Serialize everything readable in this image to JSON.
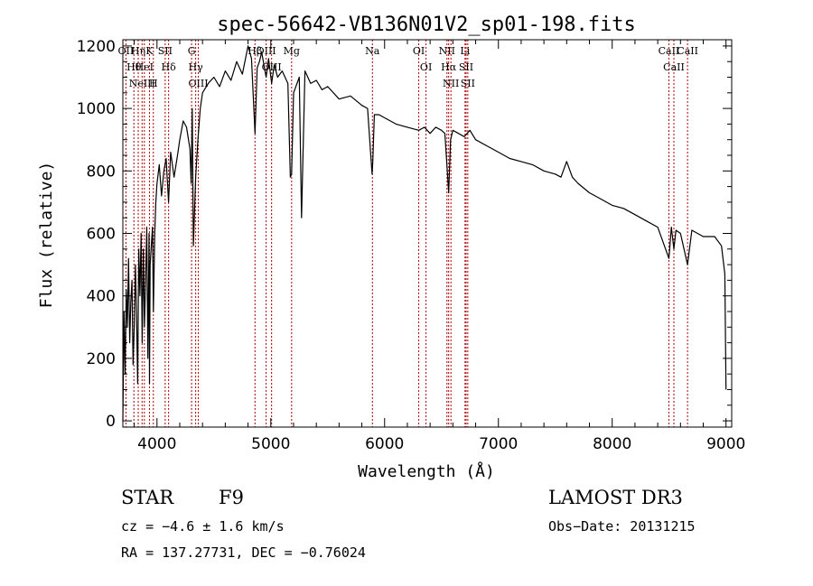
{
  "chart_data": {
    "type": "line",
    "title": "spec-56642-VB136N01V2_sp01-198.fits",
    "xlabel": "Wavelength (Å)",
    "ylabel": "Flux (relative)",
    "xlim": [
      3700,
      9050
    ],
    "ylim": [
      -20,
      1220
    ],
    "xticks": [
      4000,
      5000,
      6000,
      7000,
      8000,
      9000
    ],
    "yticks": [
      0,
      200,
      400,
      600,
      800,
      1000,
      1200
    ],
    "grid": false,
    "series": [
      {
        "x": [
          3700,
          3710,
          3720,
          3730,
          3740,
          3750,
          3760,
          3770,
          3780,
          3790,
          3800,
          3810,
          3820,
          3830,
          3840,
          3850,
          3860,
          3870,
          3880,
          3890,
          3900,
          3910,
          3920,
          3930,
          3934,
          3940,
          3950,
          3960,
          3968,
          3980,
          3990,
          4000,
          4020,
          4040,
          4060,
          4080,
          4102,
          4120,
          4150,
          4180,
          4200,
          4230,
          4260,
          4290,
          4300,
          4310,
          4320,
          4340,
          4360,
          4380,
          4400,
          4450,
          4500,
          4550,
          4600,
          4650,
          4700,
          4750,
          4800,
          4830,
          4861,
          4880,
          4900,
          4920,
          4959,
          4980,
          5007,
          5030,
          5060,
          5100,
          5150,
          5172,
          5183,
          5200,
          5250,
          5270,
          5300,
          5350,
          5400,
          5450,
          5500,
          5600,
          5700,
          5800,
          5850,
          5890,
          5896,
          5910,
          5950,
          6000,
          6100,
          6200,
          6300,
          6350,
          6400,
          6450,
          6500,
          6530,
          6563,
          6580,
          6600,
          6650,
          6700,
          6750,
          6800,
          6900,
          7000,
          7100,
          7200,
          7300,
          7400,
          7500,
          7550,
          7600,
          7650,
          7700,
          7800,
          7900,
          8000,
          8100,
          8200,
          8300,
          8400,
          8498,
          8520,
          8542,
          8560,
          8600,
          8662,
          8700,
          8800,
          8900,
          8960,
          8990,
          9000
        ],
        "y": [
          0,
          350,
          150,
          420,
          300,
          520,
          250,
          380,
          450,
          180,
          300,
          500,
          350,
          120,
          550,
          400,
          600,
          250,
          550,
          300,
          450,
          620,
          200,
          600,
          120,
          500,
          560,
          620,
          350,
          600,
          700,
          760,
          820,
          720,
          800,
          840,
          700,
          860,
          780,
          850,
          900,
          960,
          940,
          870,
          760,
          1000,
          560,
          780,
          900,
          1000,
          1050,
          1080,
          1100,
          1070,
          1120,
          1090,
          1150,
          1110,
          1200,
          1160,
          920,
          1130,
          1150,
          1180,
          1100,
          1160,
          1080,
          1140,
          1100,
          1120,
          1080,
          780,
          790,
          1050,
          1100,
          650,
          1120,
          1080,
          1090,
          1060,
          1070,
          1030,
          1040,
          1010,
          1000,
          790,
          830,
          980,
          980,
          970,
          950,
          940,
          930,
          940,
          920,
          940,
          930,
          920,
          730,
          900,
          930,
          920,
          910,
          930,
          900,
          880,
          860,
          840,
          830,
          820,
          800,
          790,
          780,
          830,
          780,
          760,
          730,
          710,
          690,
          680,
          660,
          640,
          620,
          520,
          620,
          550,
          610,
          600,
          500,
          610,
          590,
          590,
          560,
          470,
          100
        ]
      }
    ]
  },
  "line_marks": [
    {
      "x": 3727,
      "labels": [
        "OII"
      ]
    },
    {
      "x": 3797,
      "labels": [
        "Hθ"
      ]
    },
    {
      "x": 3835,
      "labels": [
        "Hη"
      ]
    },
    {
      "x": 3869,
      "labels": [
        "NeIII"
      ]
    },
    {
      "x": 3889,
      "labels": [
        "HeI"
      ]
    },
    {
      "x": 3934,
      "labels": [
        "K"
      ]
    },
    {
      "x": 3968,
      "labels": [
        "H"
      ]
    },
    {
      "x": 4072,
      "labels": [
        "SII"
      ]
    },
    {
      "x": 4102,
      "labels": [
        "Hδ"
      ]
    },
    {
      "x": 4304,
      "labels": [
        "G"
      ]
    },
    {
      "x": 4340,
      "labels": [
        "Hγ"
      ]
    },
    {
      "x": 4363,
      "labels": [
        "OIII"
      ]
    },
    {
      "x": 4861,
      "labels": [
        "Hβ"
      ]
    },
    {
      "x": 4959,
      "labels": [
        "OIII"
      ]
    },
    {
      "x": 5007,
      "labels": [
        "OIII"
      ]
    },
    {
      "x": 5183,
      "labels": [
        "Mg"
      ]
    },
    {
      "x": 5893,
      "labels": [
        "Na"
      ]
    },
    {
      "x": 6300,
      "labels": [
        "OI"
      ]
    },
    {
      "x": 6364,
      "labels": [
        "OI"
      ]
    },
    {
      "x": 6548,
      "labels": [
        "NII"
      ]
    },
    {
      "x": 6563,
      "labels": [
        "Hα"
      ]
    },
    {
      "x": 6583,
      "labels": [
        "NII"
      ]
    },
    {
      "x": 6707,
      "labels": [
        "Li"
      ]
    },
    {
      "x": 6716,
      "labels": [
        "SII"
      ]
    },
    {
      "x": 6731,
      "labels": [
        "SII"
      ]
    },
    {
      "x": 8498,
      "labels": [
        "CaII"
      ]
    },
    {
      "x": 8542,
      "labels": [
        "CaII"
      ]
    },
    {
      "x": 8662,
      "labels": [
        "CaII"
      ]
    }
  ],
  "info": {
    "class": "STAR",
    "subclass": "F9",
    "cz": "cz = −4.6 ± 1.6 km/s",
    "coords": "RA = 137.27731, DEC =  −0.76024",
    "survey": "LAMOST DR3",
    "obsdate": "Obs−Date: 20131215"
  },
  "colors": {
    "spectrum": "#000000",
    "line_marker": "#b00000",
    "axes": "#000000"
  }
}
